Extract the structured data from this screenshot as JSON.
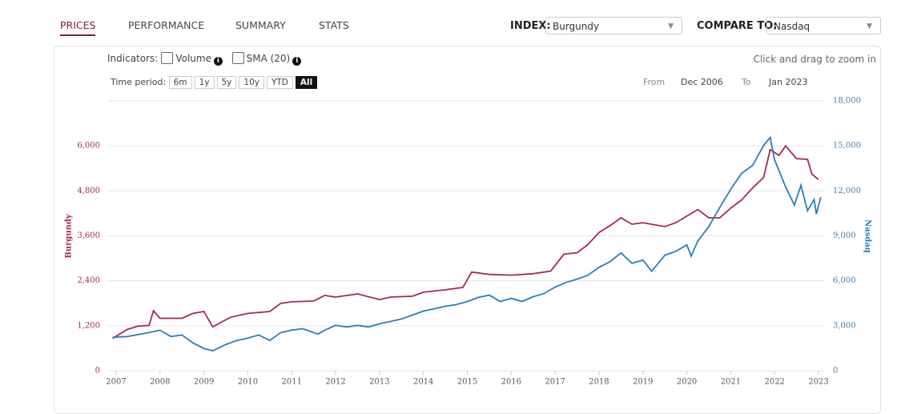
{
  "tabs": [
    "PRICES",
    "PERFORMANCE",
    "SUMMARY",
    "STATS"
  ],
  "index": {
    "label": "INDEX:",
    "value": "Burgundy"
  },
  "compare": {
    "label": "COMPARE TO:",
    "value": "Nasdaq"
  },
  "indicators": {
    "label": "Indicators:",
    "options": [
      "Volume",
      "SMA (20)"
    ]
  },
  "time_period": {
    "label": "Time period:",
    "options": [
      "6m",
      "1y",
      "5y",
      "10y",
      "YTD",
      "All"
    ]
  },
  "range": {
    "from_label": "From",
    "from": "Dec 2006",
    "to_label": "To",
    "to": "Jan 2023"
  },
  "zoom_hint": "Click and drag to zoom in",
  "chart_data": {
    "type": "line",
    "xlim": [
      2006.9,
      2023.1
    ],
    "xticks": [
      2007,
      2008,
      2009,
      2010,
      2011,
      2012,
      2013,
      2014,
      2015,
      2016,
      2017,
      2018,
      2019,
      2020,
      2021,
      2022,
      2023
    ],
    "ylim": [
      0,
      7200
    ],
    "yticks": [
      0,
      {
        "value": 1200,
        "label": "1,200"
      },
      {
        "value": 2400,
        "label": "2,400"
      },
      {
        "value": 3600,
        "label": "3,600"
      },
      {
        "value": 4800,
        "label": "4,800"
      },
      {
        "value": 6000,
        "label": "6,000"
      }
    ],
    "y2lim": [
      0,
      18000
    ],
    "y2ticks": [
      0,
      {
        "value": 3000,
        "label": "3,000"
      },
      {
        "value": 6000,
        "label": "6,000"
      },
      {
        "value": 9000,
        "label": "9,000"
      },
      {
        "value": 12000,
        "label": "12,000"
      },
      {
        "value": 15000,
        "label": "15,000"
      },
      {
        "value": 18000,
        "label": "18,000"
      }
    ],
    "grid": true,
    "series": [
      {
        "name": "Burgundy",
        "color": "#a3295a",
        "axis": "y",
        "x": [
          2006.92,
          2007.25,
          2007.5,
          2007.75,
          2007.85,
          2008.0,
          2008.5,
          2008.75,
          2009.0,
          2009.2,
          2009.6,
          2010.0,
          2010.5,
          2010.75,
          2011.0,
          2011.5,
          2011.75,
          2012.0,
          2012.5,
          2013.0,
          2013.25,
          2013.75,
          2014.0,
          2014.5,
          2014.9,
          2015.1,
          2015.5,
          2016.0,
          2016.5,
          2016.9,
          2017.2,
          2017.5,
          2017.75,
          2018.0,
          2018.25,
          2018.5,
          2018.75,
          2019.0,
          2019.5,
          2019.75,
          2020.0,
          2020.25,
          2020.5,
          2020.75,
          2021.0,
          2021.25,
          2021.5,
          2021.75,
          2021.9,
          2022.1,
          2022.25,
          2022.5,
          2022.75,
          2022.85,
          2023.0
        ],
        "values": [
          864,
          1100,
          1190,
          1210,
          1600,
          1400,
          1400,
          1530,
          1580,
          1170,
          1425,
          1530,
          1580,
          1800,
          1840,
          1860,
          2010,
          1965,
          2050,
          1900,
          1965,
          1990,
          2095,
          2160,
          2225,
          2635,
          2570,
          2550,
          2590,
          2660,
          3110,
          3150,
          3370,
          3690,
          3870,
          4080,
          3910,
          3950,
          3845,
          3950,
          4125,
          4300,
          4080,
          4080,
          4340,
          4560,
          4880,
          5160,
          5900,
          5745,
          6000,
          5660,
          5640,
          5250,
          5100
        ]
      },
      {
        "name": "Nasdaq",
        "color": "#2a7db8",
        "axis": "y2",
        "x": [
          2006.92,
          2007.25,
          2007.75,
          2008.0,
          2008.25,
          2008.5,
          2008.75,
          2009.0,
          2009.2,
          2009.5,
          2009.75,
          2010.0,
          2010.25,
          2010.5,
          2010.75,
          2011.0,
          2011.25,
          2011.6,
          2011.75,
          2012.0,
          2012.25,
          2012.5,
          2012.75,
          2013.0,
          2013.5,
          2013.75,
          2014.0,
          2014.5,
          2014.75,
          2015.0,
          2015.25,
          2015.5,
          2015.75,
          2016.0,
          2016.25,
          2016.5,
          2016.75,
          2017.0,
          2017.25,
          2017.5,
          2017.75,
          2018.0,
          2018.25,
          2018.5,
          2018.75,
          2019.0,
          2019.2,
          2019.5,
          2019.75,
          2020.0,
          2020.1,
          2020.25,
          2020.5,
          2020.75,
          2021.0,
          2021.25,
          2021.5,
          2021.75,
          2021.9,
          2022.0,
          2022.25,
          2022.45,
          2022.6,
          2022.75,
          2022.9,
          2022.95,
          2023.05
        ],
        "values": [
          2230,
          2280,
          2550,
          2700,
          2280,
          2390,
          1860,
          1490,
          1330,
          1750,
          2020,
          2180,
          2390,
          2020,
          2550,
          2710,
          2810,
          2440,
          2710,
          3030,
          2920,
          3030,
          2920,
          3130,
          3450,
          3720,
          3980,
          4300,
          4410,
          4620,
          4890,
          5040,
          4620,
          4830,
          4620,
          4940,
          5150,
          5580,
          5890,
          6110,
          6370,
          6900,
          7270,
          7860,
          7170,
          7380,
          6640,
          7700,
          7970,
          8390,
          7650,
          8660,
          9610,
          10890,
          12110,
          13170,
          13700,
          15030,
          15560,
          14070,
          12270,
          11050,
          12370,
          10670,
          11420,
          10460,
          11580
        ]
      }
    ]
  }
}
